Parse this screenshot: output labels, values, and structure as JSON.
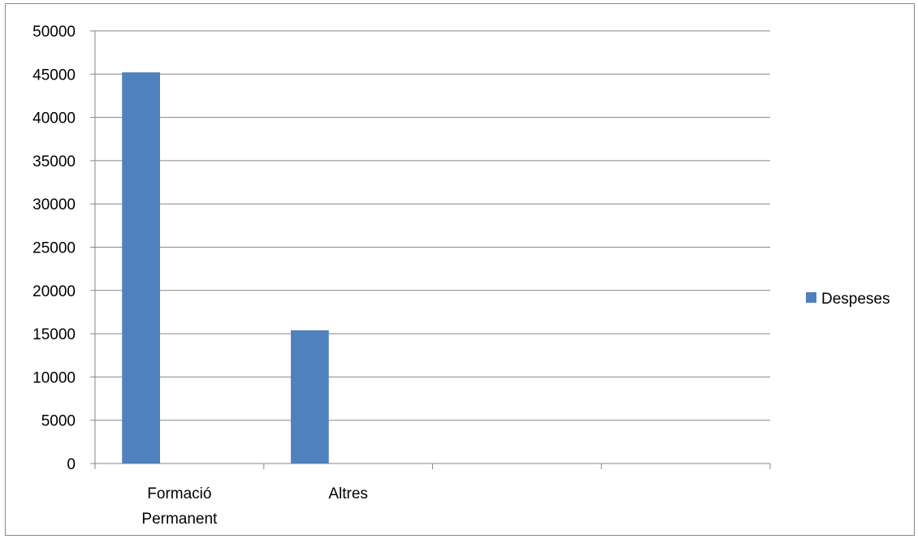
{
  "chart_data": {
    "type": "bar",
    "categories": [
      [
        "Formació",
        "Permanent"
      ],
      [
        "Altres"
      ],
      [
        ""
      ],
      [
        ""
      ]
    ],
    "series": [
      {
        "name": "Despeses",
        "values": [
          45200,
          15400,
          null,
          null
        ]
      }
    ],
    "ylim": [
      0,
      50000
    ],
    "yticks": [
      0,
      5000,
      10000,
      15000,
      20000,
      25000,
      30000,
      35000,
      40000,
      45000,
      50000
    ],
    "grid": true,
    "legend_position": "right",
    "colors": {
      "bar": "#4F81BD",
      "grid": "#878787",
      "axis": "#878787"
    }
  }
}
